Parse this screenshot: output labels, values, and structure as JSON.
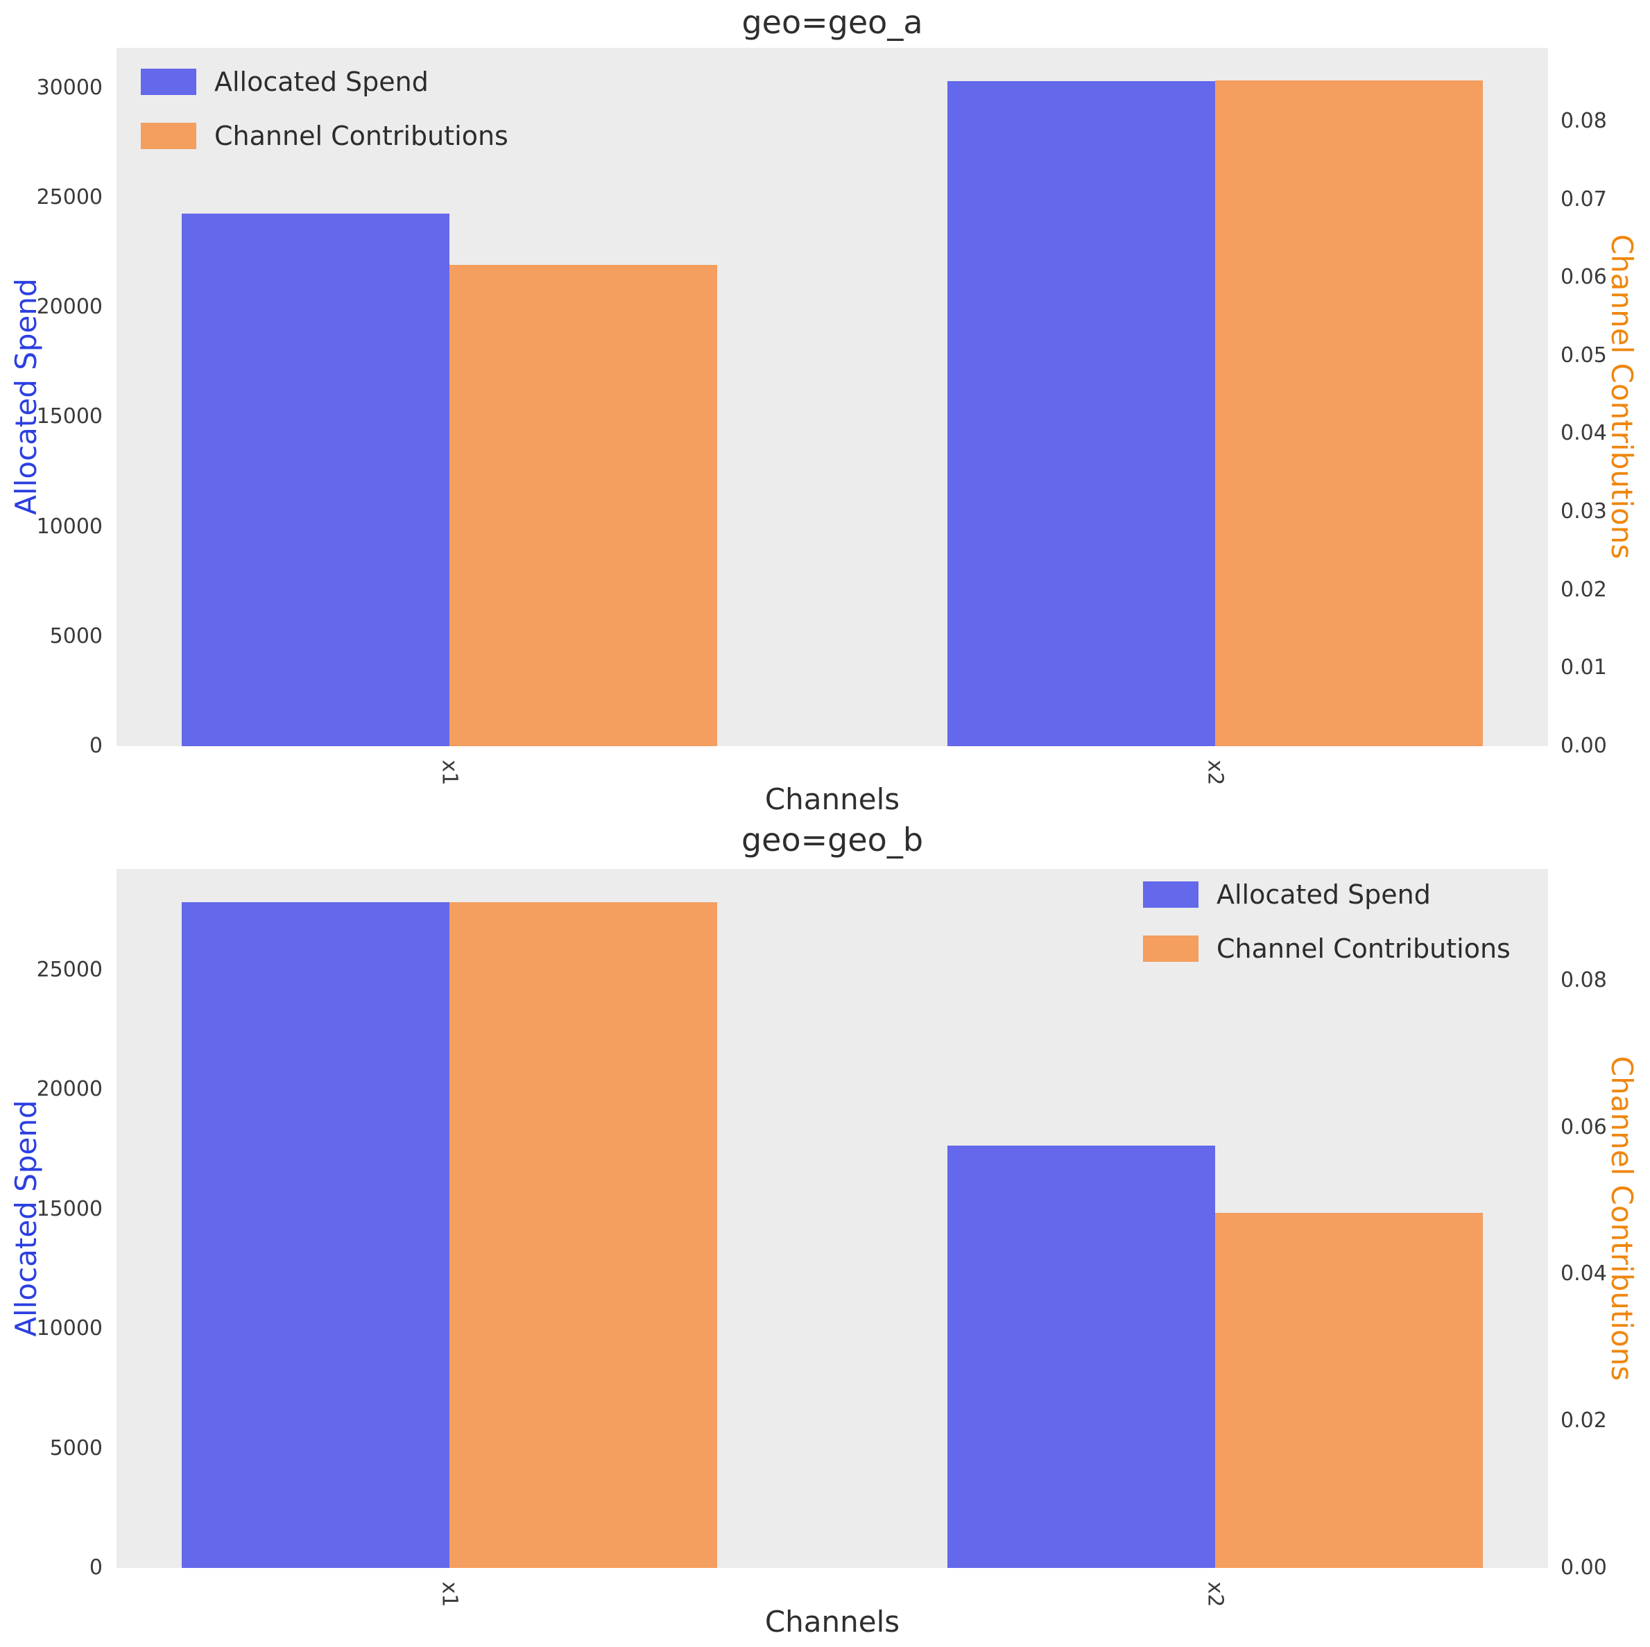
{
  "figure": {
    "background": "#ffffff",
    "plot_background": "#ececec",
    "tick_color": "#3a3a3a",
    "title_color": "#2e2e2e",
    "label_colors": {
      "spend": "#2b3fe1",
      "contrib": "#ef860d"
    },
    "bar_colors": {
      "spend": "#6468eb",
      "contrib": "#f49e5f"
    }
  },
  "legend": {
    "items": [
      {
        "label": "Allocated Spend",
        "color": "#6468eb"
      },
      {
        "label": "Channel Contributions",
        "color": "#f49e5f"
      }
    ]
  },
  "chart_data": [
    {
      "type": "bar",
      "title": "geo=geo_a",
      "xlabel": "Channels",
      "ylabel_left": "Allocated Spend",
      "ylabel_right": "Channel Contributions",
      "categories": [
        "x1",
        "x2"
      ],
      "series": [
        {
          "name": "Allocated Spend",
          "axis": "left",
          "color": "#6468eb",
          "values": [
            24280,
            30320
          ]
        },
        {
          "name": "Channel Contributions",
          "axis": "right",
          "color": "#f49e5f",
          "values": [
            0.0616,
            0.0852
          ]
        }
      ],
      "left_ticks": [
        "0",
        "5000",
        "10000",
        "15000",
        "20000",
        "25000",
        "30000"
      ],
      "left_tick_values": [
        0,
        5000,
        10000,
        15000,
        20000,
        25000,
        30000
      ],
      "right_ticks": [
        "0.00",
        "0.01",
        "0.02",
        "0.03",
        "0.04",
        "0.05",
        "0.06",
        "0.07",
        "0.08"
      ],
      "right_tick_values": [
        0,
        0.01,
        0.02,
        0.03,
        0.04,
        0.05,
        0.06,
        0.07,
        0.08
      ],
      "ylim_left": [
        0,
        31830
      ],
      "ylim_right": [
        0,
        0.0894
      ],
      "grid": false,
      "legend_position": "upper left"
    },
    {
      "type": "bar",
      "title": "geo=geo_b",
      "xlabel": "Channels",
      "ylabel_left": "Allocated Spend",
      "ylabel_right": "Channel Contributions",
      "categories": [
        "x1",
        "x2"
      ],
      "series": [
        {
          "name": "Allocated Spend",
          "axis": "left",
          "color": "#6468eb",
          "values": [
            27840,
            17660
          ]
        },
        {
          "name": "Channel Contributions",
          "axis": "right",
          "color": "#f49e5f",
          "values": [
            0.0907,
            0.0484
          ]
        }
      ],
      "left_ticks": [
        "0",
        "5000",
        "10000",
        "15000",
        "20000",
        "25000"
      ],
      "left_tick_values": [
        0,
        5000,
        10000,
        15000,
        20000,
        25000
      ],
      "right_ticks": [
        "0.00",
        "0.02",
        "0.04",
        "0.06",
        "0.08"
      ],
      "right_tick_values": [
        0,
        0.02,
        0.04,
        0.06,
        0.08
      ],
      "ylim_left": [
        0,
        29230
      ],
      "ylim_right": [
        0,
        0.0952
      ],
      "grid": false,
      "legend_position": "upper right"
    }
  ]
}
